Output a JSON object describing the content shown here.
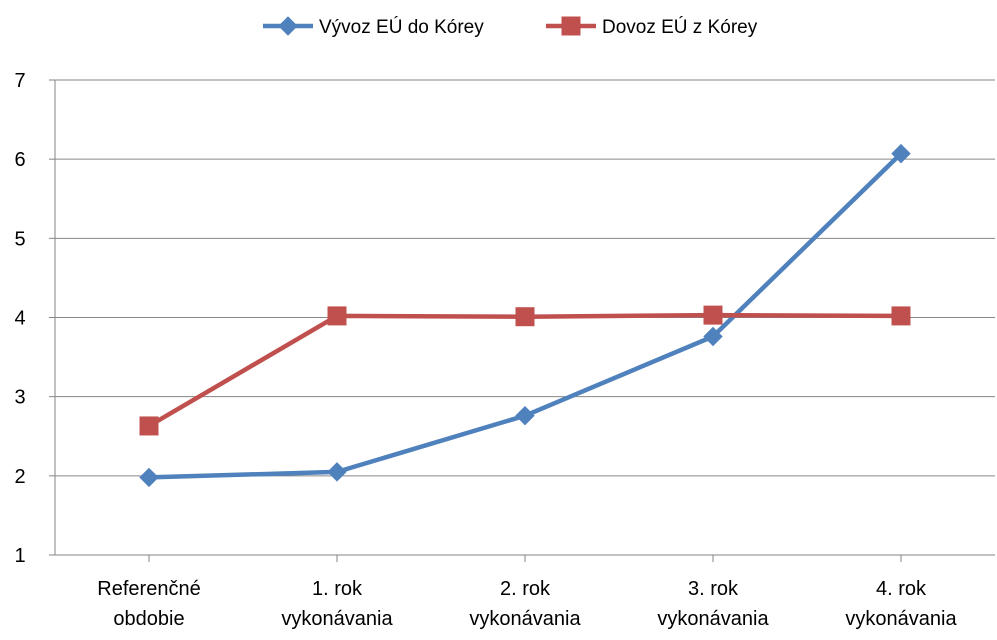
{
  "chart_data": {
    "type": "line",
    "categories": [
      [
        "Referenčné",
        "obdobie"
      ],
      [
        "1. rok",
        "vykonávania"
      ],
      [
        "2. rok",
        "vykonávania"
      ],
      [
        "3. rok",
        "vykonávania"
      ],
      [
        "4. rok",
        "vykonávania"
      ]
    ],
    "series": [
      {
        "name": "Vývoz EÚ do Kórey",
        "color": "#4F81BD",
        "marker": "diamond",
        "values": [
          1.98,
          2.05,
          2.76,
          3.76,
          6.07
        ]
      },
      {
        "name": "Dovoz EÚ z Kórey",
        "color": "#C0504D",
        "marker": "square",
        "values": [
          2.63,
          4.02,
          4.01,
          4.03,
          4.02
        ]
      }
    ],
    "ylim": [
      1,
      7
    ],
    "yticks": [
      1,
      2,
      3,
      4,
      5,
      6,
      7
    ],
    "grid": true,
    "legend_position": "top",
    "xlabel": "",
    "ylabel": "",
    "title": ""
  }
}
